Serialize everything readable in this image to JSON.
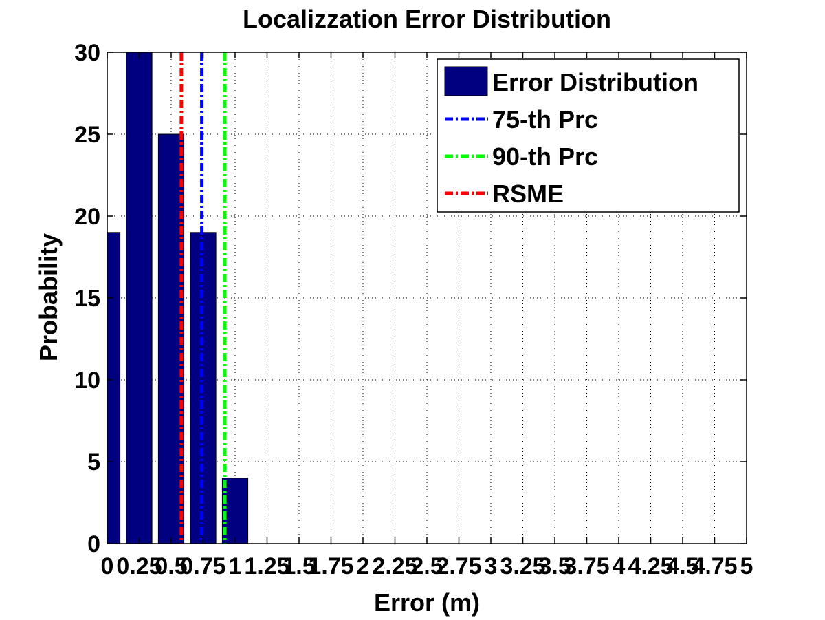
{
  "chart_data": {
    "type": "bar",
    "title": "Localizzation Error Distribution",
    "xlabel": "Error (m)",
    "ylabel": "Probability",
    "xlim": [
      0,
      5
    ],
    "ylim": [
      0,
      30
    ],
    "grid": true,
    "legend_position": "top-right",
    "x_ticks": [
      0,
      0.25,
      0.5,
      0.75,
      1,
      1.25,
      1.5,
      1.75,
      2,
      2.25,
      2.5,
      2.75,
      3,
      3.25,
      3.5,
      3.75,
      4,
      4.25,
      4.5,
      4.75,
      5
    ],
    "x_tick_labels": [
      "0",
      "0.25",
      "0.5",
      "0.75",
      "1",
      "1.25",
      "1.5",
      "1.75",
      "2",
      "2.25",
      "2.5",
      "2.75",
      "3",
      "3.25",
      "3.5",
      "3.75",
      "4",
      "4.25",
      "4.5",
      "4.75",
      "5"
    ],
    "y_ticks": [
      0,
      5,
      10,
      15,
      20,
      25,
      30
    ],
    "y_tick_labels": [
      "0",
      "5",
      "10",
      "15",
      "20",
      "25",
      "30"
    ],
    "bar_width": 0.2,
    "series": [
      {
        "name": "Error Distribution",
        "color": "#000080",
        "x": [
          0,
          0.25,
          0.5,
          0.75,
          1
        ],
        "values": [
          19,
          30,
          25,
          19,
          4
        ]
      }
    ],
    "vlines": [
      {
        "name": "75-th Prc",
        "x": 0.74,
        "color": "#0000ff",
        "style": "dash-dot"
      },
      {
        "name": "90-th Prc",
        "x": 0.92,
        "color": "#00ff00",
        "style": "dash-dot"
      },
      {
        "name": "RSME",
        "x": 0.58,
        "color": "#ff0000",
        "style": "dash-dot"
      }
    ],
    "legend": [
      {
        "label": "Error Distribution",
        "kind": "bar",
        "color": "#000080"
      },
      {
        "label": "75-th Prc",
        "kind": "line",
        "color": "#0000ff"
      },
      {
        "label": "90-th Prc",
        "kind": "line",
        "color": "#00ff00"
      },
      {
        "label": "RSME",
        "kind": "line",
        "color": "#ff0000"
      }
    ]
  }
}
